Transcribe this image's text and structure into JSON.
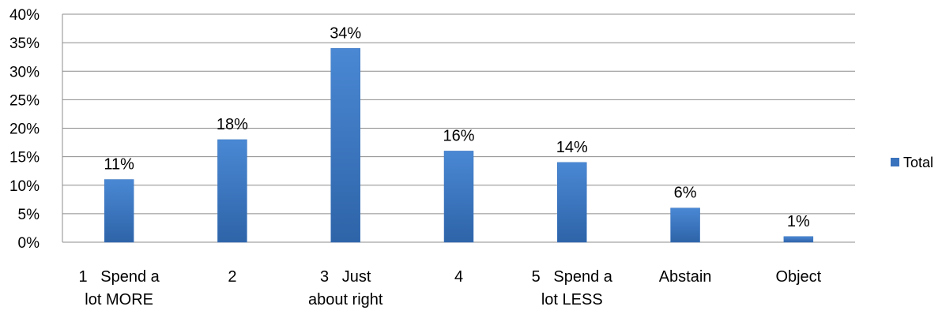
{
  "chart_data": {
    "type": "bar",
    "categories": [
      [
        "1   Spend a",
        "lot MORE"
      ],
      [
        "2"
      ],
      [
        "3   Just",
        "about right"
      ],
      [
        "4"
      ],
      [
        "5   Spend a",
        "lot LESS"
      ],
      [
        "Abstain"
      ],
      [
        "Object"
      ]
    ],
    "series": [
      {
        "name": "Total",
        "values": [
          11,
          18,
          34,
          16,
          14,
          6,
          1
        ]
      }
    ],
    "data_labels": [
      "11%",
      "18%",
      "34%",
      "16%",
      "14%",
      "6%",
      "1%"
    ],
    "y_ticks": [
      "0%",
      "5%",
      "10%",
      "15%",
      "20%",
      "25%",
      "30%",
      "35%",
      "40%"
    ],
    "ylim": [
      0,
      40
    ],
    "y_unit": "%",
    "grid": true,
    "legend_position": "right",
    "colors": {
      "bar_top": "#4a88d4",
      "bar_bottom": "#2e64a8",
      "bar_edge": "#3a73bd",
      "gridline": "#8c8c8c",
      "axis": "#8c8c8c",
      "legend_swatch": "#3a73bd"
    }
  }
}
